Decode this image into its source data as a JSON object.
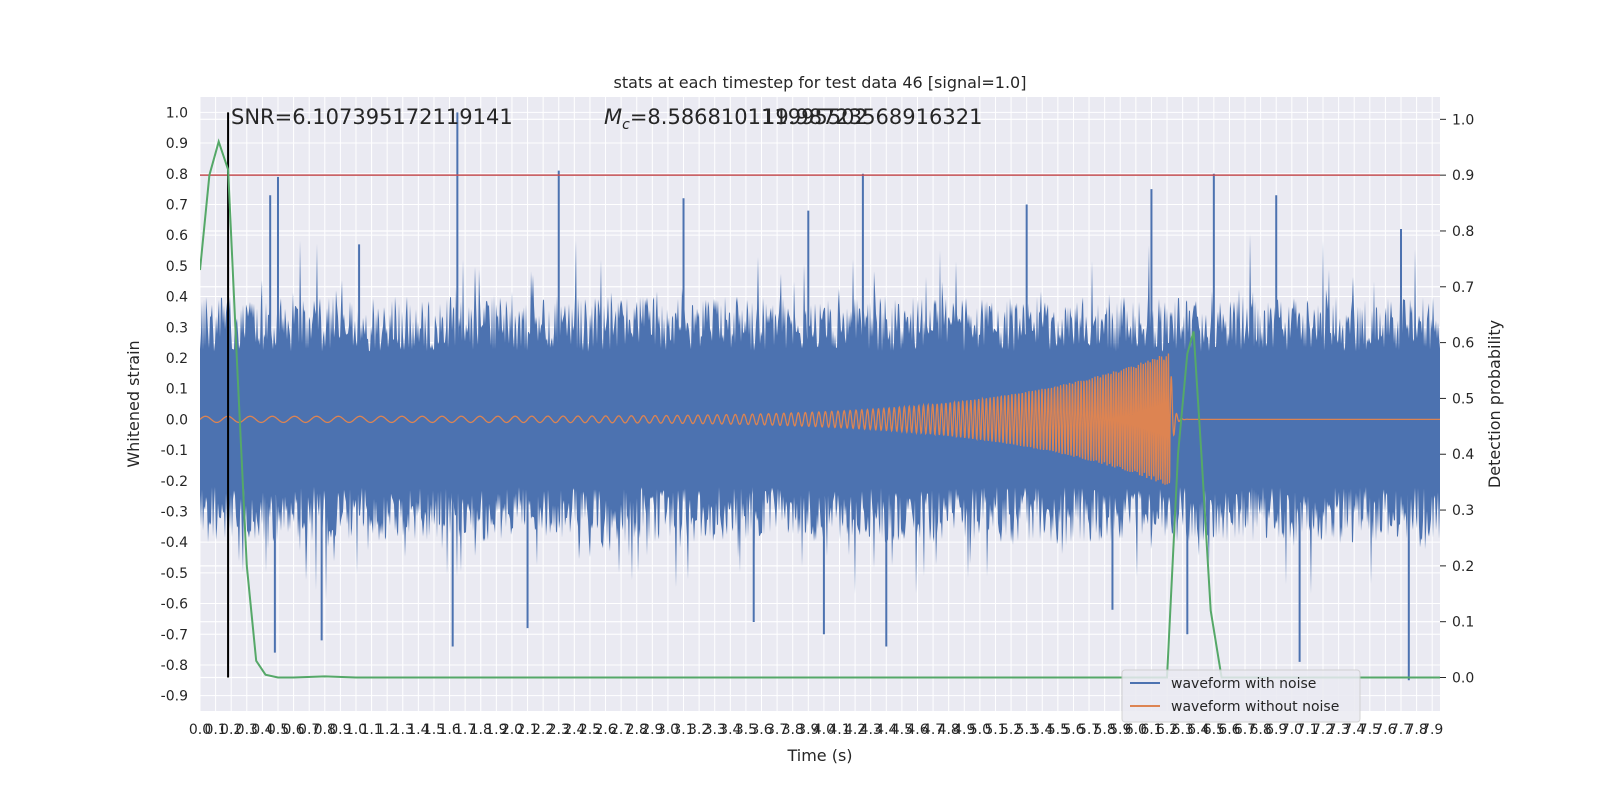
{
  "chart_data": {
    "type": "line",
    "title": "stats at each timestep for test data 46 [signal=1.0]",
    "xlabel": "Time (s)",
    "ylabel": "Whitened strain",
    "y2label": "Detection probability",
    "xlim": [
      0.0,
      7.95
    ],
    "ylim": [
      -0.95,
      1.05
    ],
    "y2lim": [
      -0.06,
      1.04
    ],
    "grid": true,
    "legend_position": "lower-right",
    "x_ticks": [
      "0.0",
      "0.1",
      "0.2",
      "0.3",
      "0.4",
      "0.5",
      "0.6",
      "0.7",
      "0.8",
      "0.9",
      "1.0",
      "1.1",
      "1.2",
      "1.3",
      "1.4",
      "1.5",
      "1.6",
      "1.7",
      "1.8",
      "1.9",
      "2.0",
      "2.1",
      "2.2",
      "2.3",
      "2.4",
      "2.5",
      "2.6",
      "2.7",
      "2.8",
      "2.9",
      "3.0",
      "3.1",
      "3.2",
      "3.3",
      "3.4",
      "3.5",
      "3.6",
      "3.7",
      "3.8",
      "3.9",
      "4.0",
      "4.1",
      "4.2",
      "4.3",
      "4.4",
      "4.5",
      "4.6",
      "4.7",
      "4.8",
      "4.9",
      "5.0",
      "5.1",
      "5.2",
      "5.3",
      "5.4",
      "5.5",
      "5.6",
      "5.7",
      "5.8",
      "5.9",
      "6.0",
      "6.1",
      "6.2",
      "6.3",
      "6.4",
      "6.5",
      "6.6",
      "6.7",
      "6.8",
      "6.9",
      "7.0",
      "7.1",
      "7.2",
      "7.3",
      "7.4",
      "7.5",
      "7.6",
      "7.7",
      "7.8",
      "7.9"
    ],
    "y_ticks": [
      "1.0",
      "0.9",
      "0.8",
      "0.7",
      "0.6",
      "0.5",
      "0.4",
      "0.3",
      "0.2",
      "0.1",
      "0.0",
      "-0.1",
      "-0.2",
      "-0.3",
      "-0.4",
      "-0.5",
      "-0.6",
      "-0.7",
      "-0.8",
      "-0.9"
    ],
    "y2_ticks": [
      "1.0",
      "0.9",
      "0.8",
      "0.7",
      "0.6",
      "0.5",
      "0.4",
      "0.3",
      "0.2",
      "0.1",
      "0.0"
    ],
    "annotations": {
      "snr": "SNR=6.107395172119141",
      "mc_symbol": "M",
      "mc_sub": "c",
      "mc_value": "=8.586810111995502",
      "mc_overlap": "19.98723568916321"
    },
    "threshold_prob": 0.9,
    "marker_time": 0.18,
    "series": [
      {
        "name": "waveform with noise",
        "color": "#4c72b0"
      },
      {
        "name": "waveform without noise",
        "color": "#dd8452"
      }
    ],
    "probability_line": {
      "color": "#55a868",
      "x": [
        0.0,
        0.06,
        0.12,
        0.18,
        0.24,
        0.3,
        0.36,
        0.42,
        0.5,
        0.6,
        0.8,
        1.0,
        2.0,
        4.0,
        6.0,
        6.2,
        6.27,
        6.33,
        6.37,
        6.42,
        6.48,
        6.55,
        7.0,
        7.95
      ],
      "y": [
        0.73,
        0.9,
        0.96,
        0.91,
        0.55,
        0.2,
        0.03,
        0.005,
        0.0,
        0.0,
        0.002,
        0.0,
        0.0,
        0.0,
        0.0,
        0.0,
        0.4,
        0.58,
        0.62,
        0.4,
        0.12,
        0.0,
        0.0,
        0.0
      ]
    },
    "noise_spikes": [
      {
        "x": 1.65,
        "y": 1.0
      },
      {
        "x": 0.5,
        "y": 0.79
      },
      {
        "x": 2.3,
        "y": 0.81
      },
      {
        "x": 4.25,
        "y": 0.8
      },
      {
        "x": 6.5,
        "y": 0.8
      },
      {
        "x": 6.1,
        "y": 0.75
      },
      {
        "x": 0.45,
        "y": 0.73
      },
      {
        "x": 1.02,
        "y": 0.57
      },
      {
        "x": 3.1,
        "y": 0.72
      },
      {
        "x": 3.9,
        "y": 0.68
      },
      {
        "x": 5.3,
        "y": 0.7
      },
      {
        "x": 6.9,
        "y": 0.73
      },
      {
        "x": 7.7,
        "y": 0.62
      },
      {
        "x": 0.48,
        "y": -0.76
      },
      {
        "x": 1.62,
        "y": -0.74
      },
      {
        "x": 7.75,
        "y": -0.85
      },
      {
        "x": 4.4,
        "y": -0.74
      },
      {
        "x": 4.0,
        "y": -0.7
      },
      {
        "x": 0.78,
        "y": -0.72
      },
      {
        "x": 7.05,
        "y": -0.79
      },
      {
        "x": 6.33,
        "y": -0.7
      },
      {
        "x": 2.1,
        "y": -0.68
      },
      {
        "x": 5.85,
        "y": -0.62
      },
      {
        "x": 3.55,
        "y": -0.66
      }
    ],
    "chirp": {
      "start": 0.0,
      "merger": 6.22,
      "end": 7.95,
      "amp_start": 0.01,
      "amp_peak": 0.22
    }
  }
}
